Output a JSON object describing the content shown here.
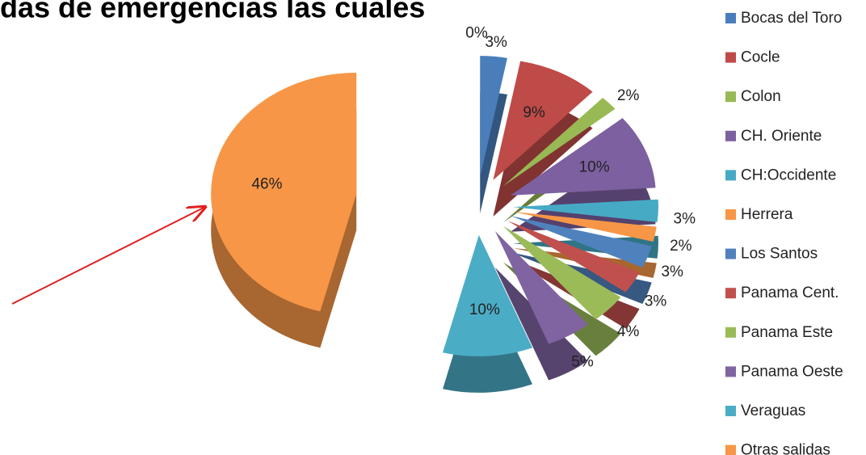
{
  "chart_data": {
    "type": "pie",
    "title": "das de emergencias las cuales",
    "categories": [
      null,
      "Bocas del  Toro",
      "Cocle",
      "Colon",
      "CH. Oriente",
      "CH:Occidente",
      "Herrera",
      "Los Santos",
      "Panama Cent.",
      "Panama Este",
      "Panama Oeste",
      "Veraguas",
      "Otras salidas"
    ],
    "values": [
      0,
      3,
      9,
      2,
      10,
      3,
      2,
      3,
      3,
      4,
      5,
      10,
      46
    ],
    "value_labels": [
      "0%",
      "3%",
      "9%",
      "2%",
      "10%",
      "3%",
      "2%",
      "3%",
      "3%",
      "4%",
      "5%",
      "10%",
      "46%"
    ],
    "colors": [
      null,
      "#4a7ebb",
      "#be4b48",
      "#98b954",
      "#7d60a0",
      "#46aac5",
      "#f79646",
      "#4f81bd",
      "#c0504d",
      "#9bbb59",
      "#8064a2",
      "#4bacc6",
      "#f79646"
    ]
  }
}
